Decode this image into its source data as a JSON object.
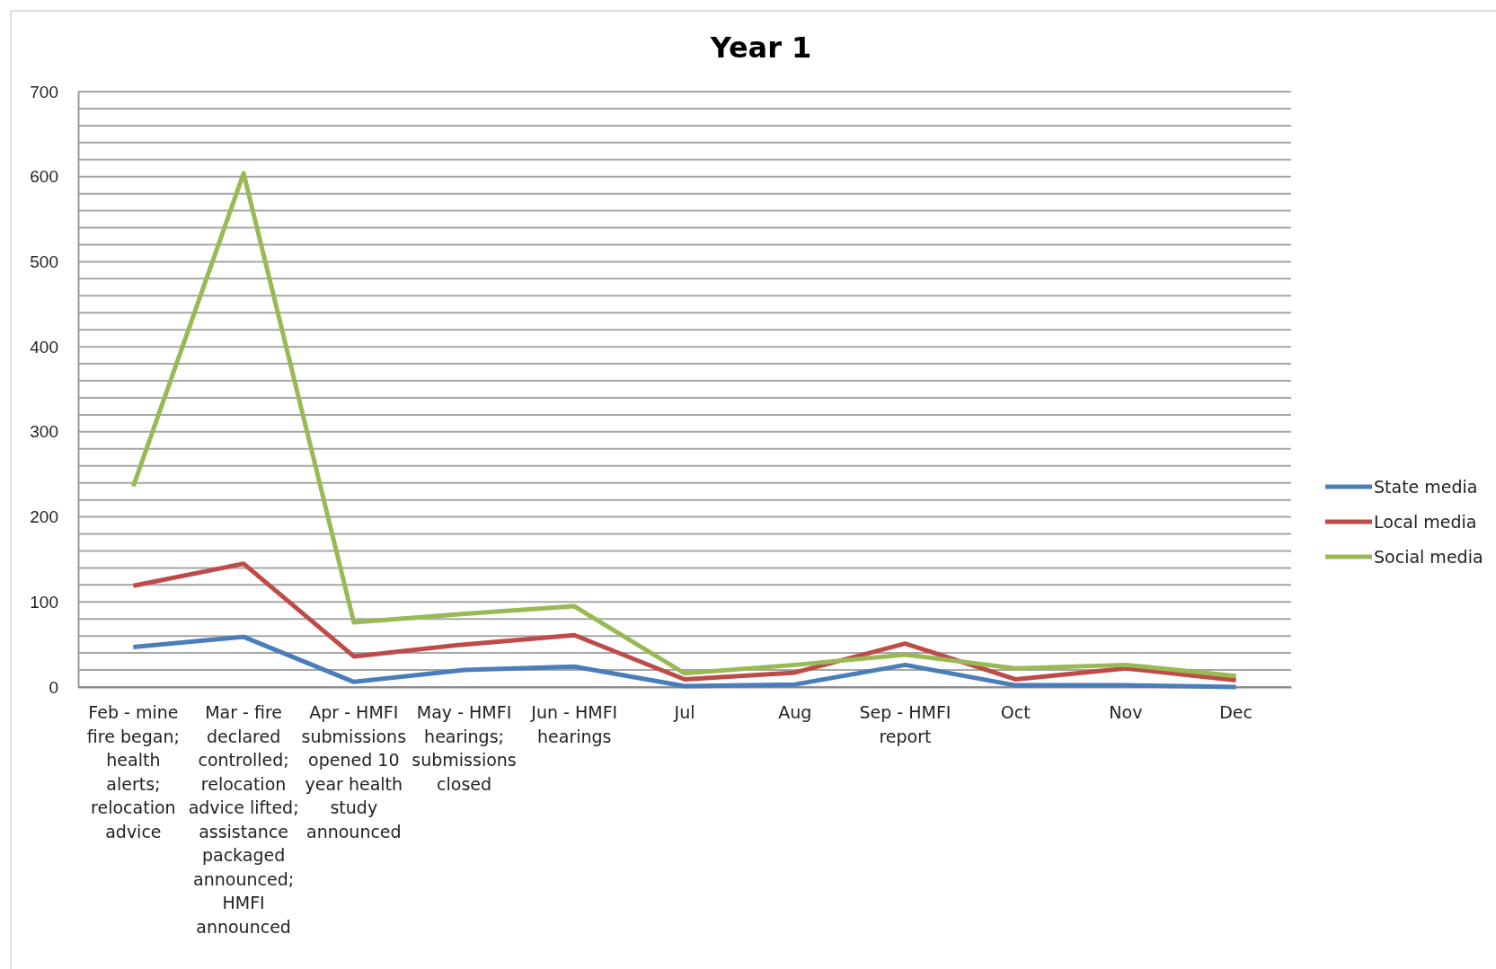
{
  "chart_data": {
    "type": "line",
    "title": "Year 1",
    "categories": [
      "Feb - mine fire began; health alerts; relocation advice",
      "Mar - fire declared controlled; relocation advice lifted; assistance packaged announced; HMFI announced",
      "Apr - HMFI submissions opened 10 year health study announced",
      "May - HMFI hearings; submissions closed",
      "Jun - HMFI hearings",
      "Jul",
      "Aug",
      "Sep - HMFI report",
      "Oct",
      "Nov",
      "Dec"
    ],
    "series": [
      {
        "name": "State media",
        "color": "#4a7ebb",
        "values": [
          47,
          59,
          6,
          20,
          24,
          1,
          3,
          26,
          2,
          2,
          0
        ]
      },
      {
        "name": "Local media",
        "color": "#be4b48",
        "values": [
          119,
          145,
          36,
          50,
          61,
          9,
          17,
          51,
          9,
          22,
          8
        ]
      },
      {
        "name": "Social media",
        "color": "#98b954",
        "values": [
          236,
          604,
          76,
          86,
          95,
          16,
          26,
          38,
          22,
          26,
          13
        ]
      }
    ],
    "ylim": [
      0,
      700
    ],
    "yticks": [
      0,
      {
        "value": 20,
        "label": null
      },
      {
        "value": 40,
        "label": null
      },
      {
        "value": 60,
        "label": null
      },
      {
        "value": 80,
        "label": null
      },
      100,
      {
        "value": 120,
        "label": null
      },
      {
        "value": 140,
        "label": null
      },
      {
        "value": 160,
        "label": null
      },
      {
        "value": 180,
        "label": null
      },
      200,
      {
        "value": 220,
        "label": null
      },
      {
        "value": 240,
        "label": null
      },
      {
        "value": 260,
        "label": null
      },
      {
        "value": 280,
        "label": null
      },
      300,
      {
        "value": 320,
        "label": null
      },
      {
        "value": 340,
        "label": null
      },
      {
        "value": 360,
        "label": null
      },
      {
        "value": 380,
        "label": null
      },
      400,
      {
        "value": 420,
        "label": null
      },
      {
        "value": 440,
        "label": null
      },
      {
        "value": 460,
        "label": null
      },
      {
        "value": 480,
        "label": null
      },
      500,
      {
        "value": 520,
        "label": null
      },
      {
        "value": 540,
        "label": null
      },
      {
        "value": 560,
        "label": null
      },
      {
        "value": 580,
        "label": null
      },
      600,
      {
        "value": 620,
        "label": null
      },
      {
        "value": 640,
        "label": null
      },
      {
        "value": 660,
        "label": null
      },
      {
        "value": 680,
        "label": null
      },
      700
    ],
    "grid": "y",
    "legend": "right",
    "marker": "none",
    "line_style": "solid"
  }
}
